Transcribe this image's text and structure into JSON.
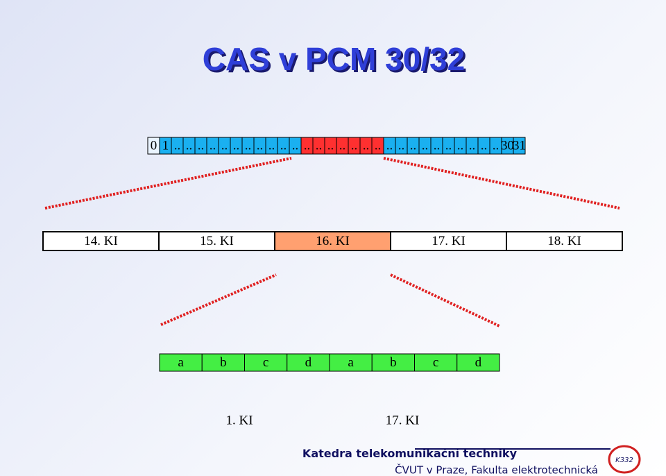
{
  "title": "CAS v PCM 30/32",
  "timeslots": [
    "0",
    "1",
    "..",
    "..",
    "..",
    "..",
    "..",
    "..",
    "..",
    "..",
    "..",
    "..",
    "..",
    "..",
    "..",
    "..",
    "..",
    "..",
    "..",
    "..",
    "..",
    "..",
    "..",
    "..",
    "..",
    "..",
    "..",
    "..",
    "..",
    "..",
    "30",
    "31"
  ],
  "frames": [
    "14. KI",
    "15. KI",
    "16. KI",
    "17. KI",
    "18. KI"
  ],
  "bits": [
    "a",
    "b",
    "c",
    "d",
    "a",
    "b",
    "c",
    "d"
  ],
  "bit_labels": [
    "1. KI",
    "17. KI"
  ],
  "footer": {
    "department": "Katedra telekomunikační techniky",
    "faculty": "ČVUT v Praze, Fakulta elektrotechnická",
    "logo": "K332"
  }
}
